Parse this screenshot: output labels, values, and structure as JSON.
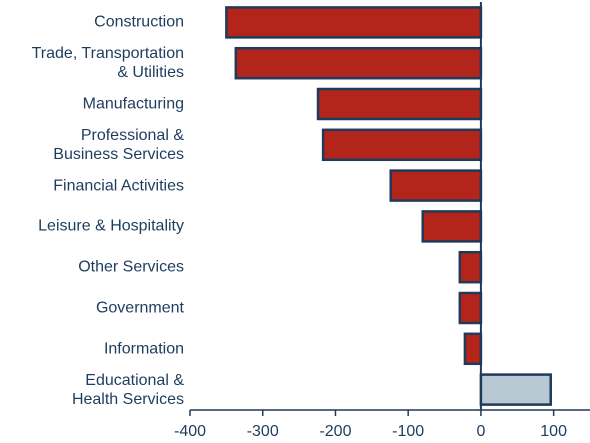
{
  "chart_data": {
    "type": "bar",
    "orientation": "horizontal",
    "categories": [
      "Construction",
      "Trade, Transportation\n& Utilities",
      "Manufacturing",
      "Professional &\nBusiness Services",
      "Financial Activities",
      "Leisure & Hospitality",
      "Other Services",
      "Government",
      "Information",
      "Educational &\nHealth Services"
    ],
    "values": [
      -350,
      -337,
      -224,
      -217,
      -124,
      -80,
      -29,
      -29,
      -22,
      96
    ],
    "colors": [
      "#b3241a",
      "#b3241a",
      "#b3241a",
      "#b3241a",
      "#b3241a",
      "#b3241a",
      "#b3241a",
      "#b3241a",
      "#b3241a",
      "#b8c9d3"
    ],
    "xlim": [
      -400,
      150
    ],
    "xticks": [
      -400,
      -300,
      -200,
      -100,
      0,
      100
    ],
    "grid": false
  }
}
